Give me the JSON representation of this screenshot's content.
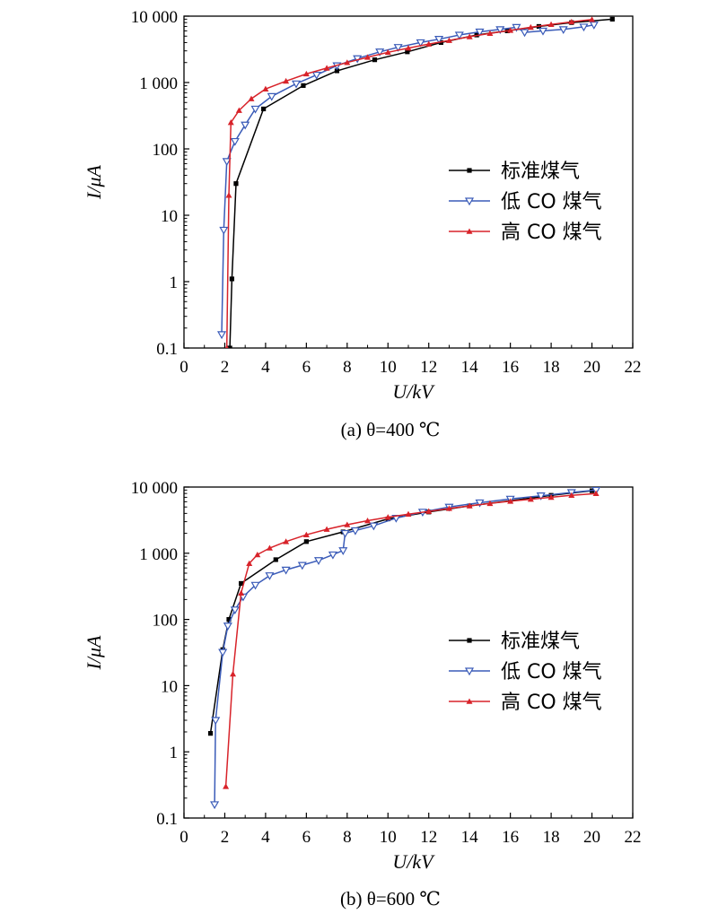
{
  "chart_data": [
    {
      "type": "line",
      "caption": "(a) θ=400 ℃",
      "xlabel": "U/kV",
      "ylabel": "I/μA",
      "xlim": [
        0,
        22
      ],
      "ylim": [
        0.1,
        10000
      ],
      "yscale": "log",
      "xticks": [
        "0",
        "2",
        "4",
        "6",
        "8",
        "10",
        "12",
        "14",
        "16",
        "18",
        "20",
        "22"
      ],
      "yticks": [
        "0.1",
        "1",
        "10",
        "100",
        "1 000",
        "10 000"
      ],
      "legend_position": "center-right",
      "series": [
        {
          "name": "标准煤气",
          "color": "#000000",
          "marker": "square",
          "x": [
            2.25,
            2.35,
            2.55,
            3.9,
            5.85,
            7.5,
            9.35,
            10.95,
            12.6,
            14.35,
            15.85,
            17.4,
            19.0,
            21.0
          ],
          "y": [
            0.1,
            1.1,
            30,
            400,
            900,
            1500,
            2200,
            2900,
            4000,
            5200,
            6000,
            7000,
            8000,
            9000
          ]
        },
        {
          "name": "低 CO 煤气",
          "color": "#3a5bb8",
          "marker": "triangle-down",
          "x": [
            1.85,
            1.95,
            2.1,
            2.5,
            3.0,
            3.5,
            4.3,
            5.5,
            6.5,
            7.5,
            8.5,
            9.6,
            10.5,
            11.6,
            12.5,
            13.5,
            14.5,
            15.5,
            16.3,
            16.7,
            17.6,
            18.6,
            19.6,
            20.1
          ],
          "y": [
            0.16,
            6,
            65,
            130,
            230,
            400,
            620,
            960,
            1300,
            1800,
            2300,
            2900,
            3400,
            4000,
            4500,
            5200,
            5800,
            6300,
            6800,
            5700,
            6000,
            6300,
            6900,
            7400
          ]
        },
        {
          "name": "高 CO 煤气",
          "color": "#d8232a",
          "marker": "triangle-up",
          "x": [
            2.1,
            2.2,
            2.3,
            2.7,
            3.3,
            4.0,
            5.0,
            6.0,
            7.0,
            8.0,
            9.0,
            10.0,
            11.0,
            12.0,
            13.0,
            14.0,
            15.0,
            16.0,
            17.0,
            18.0,
            19.0,
            20.0
          ],
          "y": [
            0.1,
            20,
            250,
            380,
            570,
            800,
            1050,
            1350,
            1650,
            2000,
            2400,
            2850,
            3300,
            3800,
            4300,
            4900,
            5500,
            6100,
            6800,
            7500,
            8200,
            8900
          ]
        }
      ]
    },
    {
      "type": "line",
      "caption": "(b) θ=600 ℃",
      "xlabel": "U/kV",
      "ylabel": "I/μA",
      "xlim": [
        0,
        22
      ],
      "ylim": [
        0.1,
        10000
      ],
      "yscale": "log",
      "xticks": [
        "0",
        "2",
        "4",
        "6",
        "8",
        "10",
        "12",
        "14",
        "16",
        "18",
        "20",
        "22"
      ],
      "yticks": [
        "0.1",
        "1",
        "10",
        "100",
        "1 000",
        "10 000"
      ],
      "legend_position": "center-right",
      "series": [
        {
          "name": "标准煤气",
          "color": "#000000",
          "marker": "square",
          "x": [
            1.3,
            1.9,
            2.2,
            2.8,
            4.5,
            6.0,
            7.8,
            10.0,
            12.0,
            14.0,
            16.0,
            18.0,
            20.0
          ],
          "y": [
            1.9,
            35,
            100,
            350,
            800,
            1500,
            2100,
            3300,
            4200,
            5200,
            6200,
            7500,
            8800
          ]
        },
        {
          "name": "低 CO 煤气",
          "color": "#3a5bb8",
          "marker": "triangle-down",
          "x": [
            1.5,
            1.55,
            1.9,
            2.15,
            2.5,
            2.9,
            3.5,
            4.2,
            5.0,
            5.8,
            6.6,
            7.3,
            7.8,
            7.9,
            8.4,
            9.3,
            10.4,
            11.7,
            13.0,
            14.5,
            16.0,
            17.5,
            19.0,
            20.2
          ],
          "y": [
            0.16,
            3,
            32,
            80,
            140,
            220,
            330,
            460,
            560,
            660,
            780,
            950,
            1100,
            2000,
            2200,
            2600,
            3400,
            4200,
            5000,
            5800,
            6600,
            7400,
            8300,
            9000
          ]
        },
        {
          "name": "高 CO 煤气",
          "color": "#d8232a",
          "marker": "triangle-up",
          "x": [
            2.05,
            2.4,
            2.8,
            3.2,
            3.6,
            4.2,
            5.0,
            6.0,
            7.0,
            8.0,
            9.0,
            10.0,
            11.0,
            12.0,
            13.0,
            14.0,
            15.0,
            16.0,
            17.0,
            18.0,
            19.0,
            20.2
          ],
          "y": [
            0.3,
            15,
            250,
            700,
            950,
            1200,
            1500,
            1900,
            2300,
            2700,
            3100,
            3500,
            3900,
            4300,
            4750,
            5200,
            5650,
            6100,
            6550,
            7000,
            7500,
            8000
          ]
        }
      ]
    }
  ]
}
